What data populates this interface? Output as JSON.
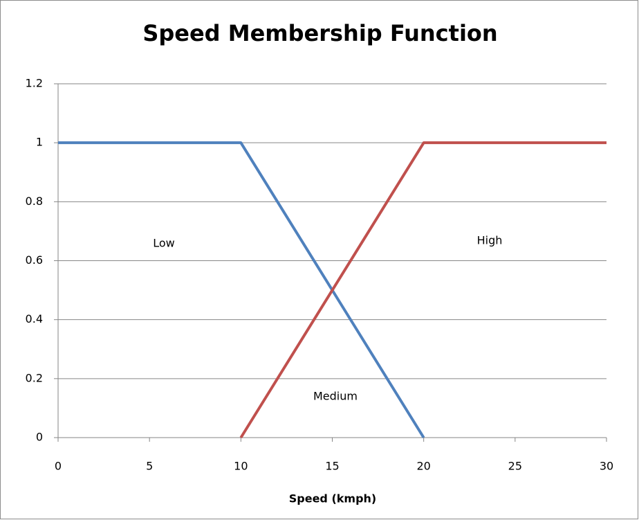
{
  "chart_data": {
    "type": "line",
    "title": "Speed Membership Function",
    "xlabel": "Speed (kmph)",
    "series": [
      {
        "color": "#4f81bd",
        "x": [
          0,
          10,
          20
        ],
        "values": [
          1,
          1,
          0
        ]
      },
      {
        "color": "#c0504d",
        "x": [
          10,
          20,
          30
        ],
        "values": [
          0,
          1,
          1
        ]
      }
    ],
    "annotations": [
      "Low",
      "High",
      "Medium"
    ],
    "xlim": [
      0,
      30
    ],
    "xticks": [
      0,
      5,
      10,
      15,
      20,
      25,
      30
    ],
    "ylim": [
      0,
      1.2
    ],
    "yticks": [
      0,
      0.2,
      0.4,
      0.6,
      0.8,
      1,
      1.2
    ],
    "grid": true
  }
}
